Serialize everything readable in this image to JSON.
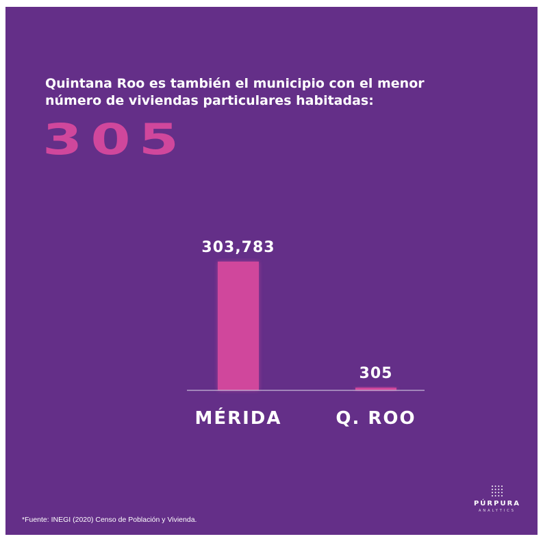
{
  "headline": {
    "line1": "Quintana Roo es también el municipio con el menor",
    "line2": "número de viviendas particulares habitadas:"
  },
  "highlight_value": "305",
  "chart_data": {
    "type": "bar",
    "categories": [
      "MÉRIDA",
      "Q. ROO"
    ],
    "values": [
      303783,
      305
    ],
    "data_labels": [
      "303,783",
      "305"
    ],
    "title": "",
    "xlabel": "",
    "ylabel": "",
    "ylim": [
      0,
      303783
    ],
    "grid": false,
    "legend": "none"
  },
  "colors": {
    "background": "#642f88",
    "accent": "#d0479c",
    "text": "#ffffff"
  },
  "footer": {
    "source": "*Fuente: INEGI (2020) Censo de Población y Vivienda."
  },
  "brand": {
    "name": "PÚRPURA",
    "tagline": "ANALYTICS",
    "icon": "dot-grid-icon"
  }
}
